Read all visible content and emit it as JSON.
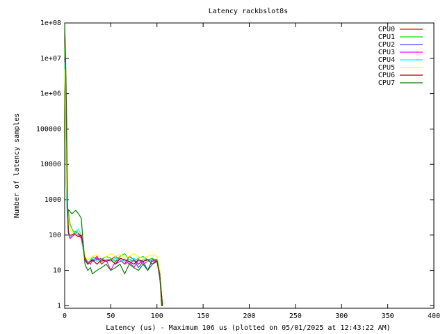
{
  "chart_data": {
    "type": "line",
    "title": "Latency rackbslot8s",
    "xlabel": "Latency (us) - Maximum 106 us (plotted on 05/01/2025 at 12:43:22 AM)",
    "ylabel": "Number of latency samples",
    "log_y": true,
    "legend": "top-right",
    "xlim": [
      0,
      400
    ],
    "xticks": [
      0,
      50,
      100,
      150,
      200,
      250,
      300,
      350,
      400
    ],
    "ylim": [
      0.85,
      100000000
    ],
    "yticks": [
      1,
      10,
      100,
      1000,
      10000,
      100000,
      {
        "value": 1000000,
        "label": "1e+06"
      },
      {
        "value": 10000000,
        "label": "1e+07"
      },
      {
        "value": 100000000,
        "label": "1e+08"
      }
    ],
    "x": [
      0,
      1,
      2,
      3,
      4,
      5,
      6,
      8,
      10,
      12,
      15,
      18,
      20,
      22,
      25,
      28,
      30,
      35,
      40,
      45,
      50,
      55,
      60,
      65,
      70,
      75,
      80,
      85,
      90,
      95,
      100,
      103,
      105,
      106
    ],
    "series": [
      {
        "name": "CPU0",
        "color": "#ff0000",
        "values": [
          30000000,
          300000,
          3000,
          500,
          120,
          100,
          90,
          100,
          110,
          100,
          120,
          90,
          60,
          25,
          15,
          20,
          18,
          25,
          15,
          20,
          20,
          25,
          20,
          15,
          25,
          20,
          15,
          20,
          20,
          18,
          20,
          10,
          2,
          1
        ]
      },
      {
        "name": "CPU1",
        "color": "#00e000",
        "values": [
          20000000,
          200000,
          2000,
          600,
          500,
          300,
          200,
          150,
          120,
          130,
          120,
          100,
          50,
          20,
          15,
          18,
          25,
          20,
          20,
          25,
          22,
          18,
          25,
          30,
          20,
          18,
          22,
          25,
          20,
          22,
          18,
          8,
          2,
          1
        ]
      },
      {
        "name": "CPU2",
        "color": "#4040ff",
        "values": [
          10000000,
          100000,
          1500,
          400,
          150,
          90,
          80,
          90,
          100,
          120,
          110,
          90,
          40,
          20,
          15,
          20,
          18,
          20,
          22,
          18,
          20,
          15,
          18,
          20,
          15,
          20,
          12,
          18,
          10,
          15,
          20,
          6,
          2,
          1
        ]
      },
      {
        "name": "CPU3",
        "color": "#ff00ff",
        "values": [
          10000000,
          100000,
          1500,
          300,
          120,
          100,
          80,
          90,
          100,
          120,
          100,
          80,
          40,
          20,
          18,
          15,
          20,
          22,
          18,
          20,
          10,
          18,
          20,
          15,
          18,
          12,
          20,
          15,
          18,
          20,
          18,
          6,
          2,
          1
        ]
      },
      {
        "name": "CPU4",
        "color": "#00ffff",
        "values": [
          8000000,
          80000,
          1200,
          300,
          130,
          100,
          90,
          100,
          110,
          120,
          150,
          100,
          40,
          20,
          15,
          20,
          22,
          18,
          20,
          20,
          18,
          22,
          20,
          18,
          20,
          22,
          18,
          20,
          18,
          20,
          20,
          8,
          2,
          1
        ]
      },
      {
        "name": "CPU5",
        "color": "#ffff00",
        "values": [
          5000000,
          200000,
          2500,
          600,
          300,
          200,
          150,
          120,
          110,
          100,
          120,
          100,
          60,
          25,
          20,
          22,
          25,
          28,
          22,
          25,
          30,
          25,
          28,
          22,
          25,
          30,
          25,
          22,
          25,
          28,
          25,
          10,
          2,
          1
        ]
      },
      {
        "name": "CPU6",
        "color": "#a00000",
        "values": [
          100000000,
          10000000,
          300000,
          1000,
          120,
          100,
          100,
          100,
          110,
          100,
          90,
          100,
          50,
          20,
          15,
          18,
          20,
          15,
          20,
          18,
          20,
          15,
          22,
          20,
          18,
          15,
          20,
          18,
          20,
          15,
          18,
          8,
          2,
          1
        ]
      },
      {
        "name": "CPU7",
        "color": "#008000",
        "values": [
          100000000,
          5000000,
          100000,
          600,
          500,
          500,
          450,
          400,
          450,
          500,
          400,
          300,
          60,
          15,
          10,
          12,
          8,
          10,
          12,
          15,
          10,
          12,
          15,
          8,
          15,
          12,
          10,
          15,
          10,
          20,
          20,
          8,
          1,
          1
        ]
      }
    ]
  }
}
